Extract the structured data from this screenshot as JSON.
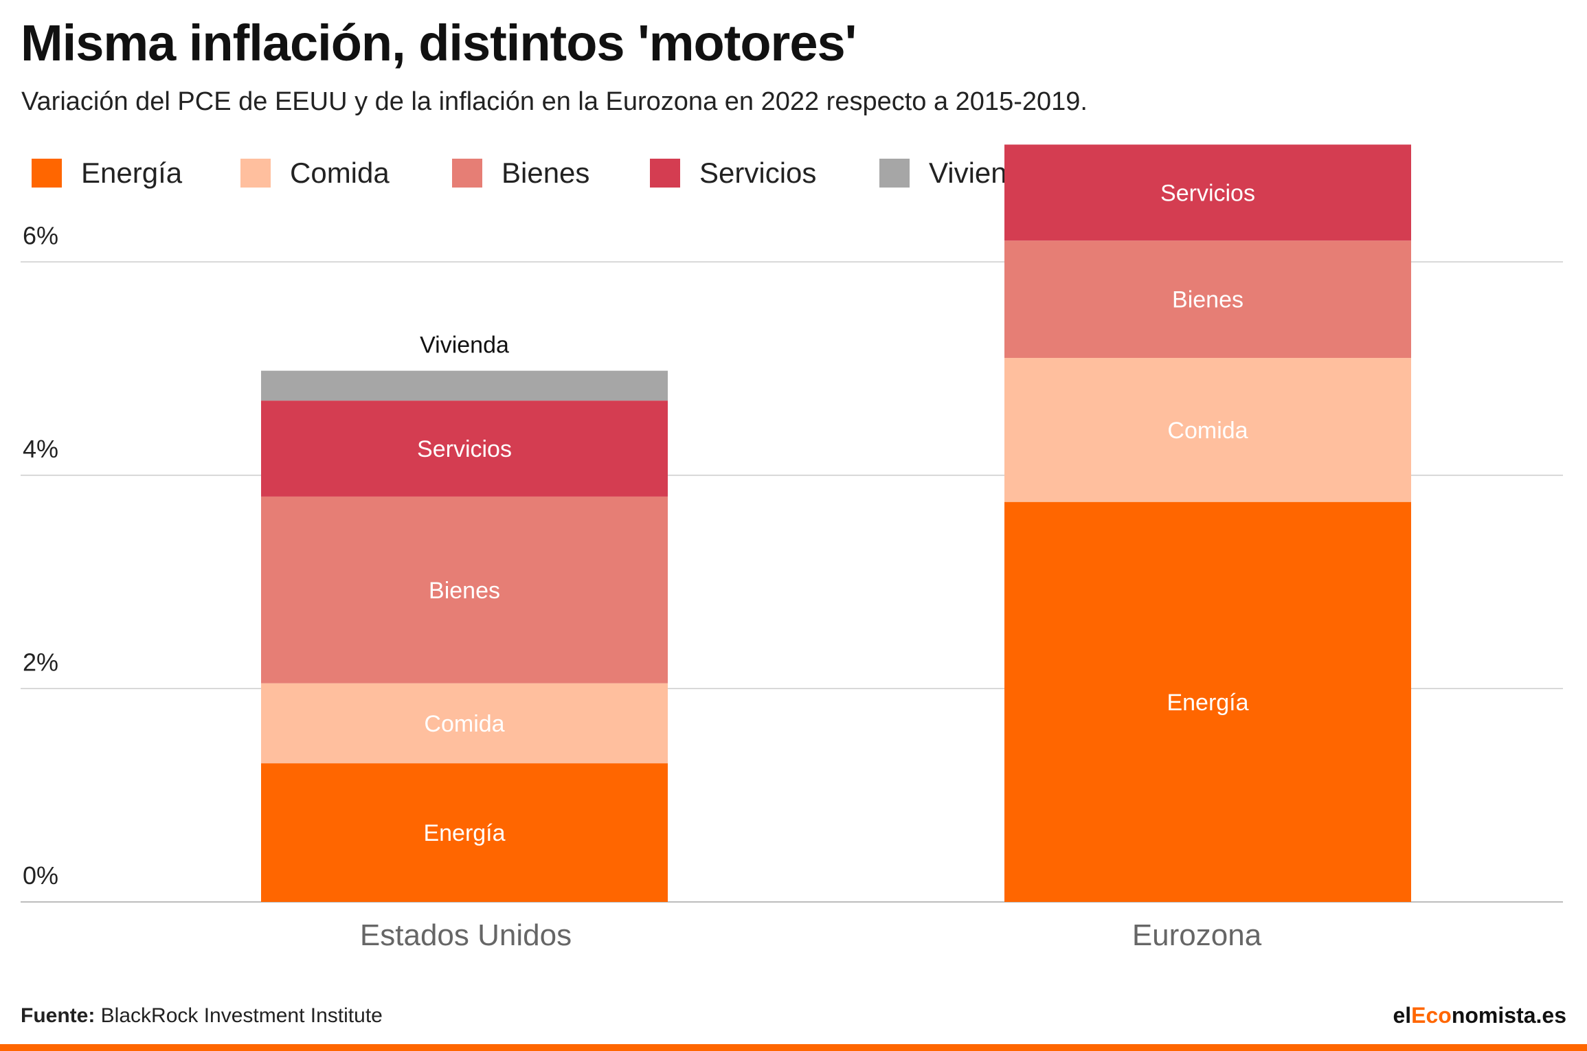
{
  "title": "Misma inflación, distintos 'motores'",
  "subtitle": "Variación del PCE de EEUU y de la inflación en la Eurozona en 2022 respecto a 2015-2019.",
  "footer": {
    "source_label": "Fuente:",
    "source_text": "BlackRock Investment Institute",
    "brand_prefix": "el",
    "brand_accent": "Eco",
    "brand_suffix": "nomista.es"
  },
  "colors": {
    "Energía": "#ff6600",
    "Comida": "#ffbf9e",
    "Bienes": "#e67e75",
    "Servicios": "#d43d51",
    "Vivienda": "#a6a6a6"
  },
  "chart_data": {
    "type": "bar",
    "stacked": true,
    "categories": [
      "Estados Unidos",
      "Eurozona"
    ],
    "ylim": [
      0,
      7
    ],
    "yticks": [
      0,
      2,
      4,
      6
    ],
    "ytick_labels": [
      "0%",
      "2%",
      "4%",
      "6%"
    ],
    "legend": [
      "Energía",
      "Comida",
      "Bienes",
      "Servicios",
      "Vivienda"
    ],
    "legend_position": "top-left",
    "grid": true,
    "series": [
      {
        "name": "Energía",
        "values": [
          1.3,
          3.75
        ],
        "labels": [
          "Energía",
          "Energía"
        ]
      },
      {
        "name": "Comida",
        "values": [
          0.75,
          1.35
        ],
        "labels": [
          "Comida",
          "Comida"
        ]
      },
      {
        "name": "Bienes",
        "values": [
          1.75,
          1.1
        ],
        "labels": [
          "Bienes",
          "Bienes"
        ]
      },
      {
        "name": "Servicios",
        "values": [
          0.9,
          0.9
        ],
        "labels": [
          "Servicios",
          "Servicios"
        ]
      },
      {
        "name": "Vivienda",
        "values": [
          0.28,
          0
        ],
        "labels": [
          "Vivienda",
          ""
        ]
      }
    ]
  }
}
